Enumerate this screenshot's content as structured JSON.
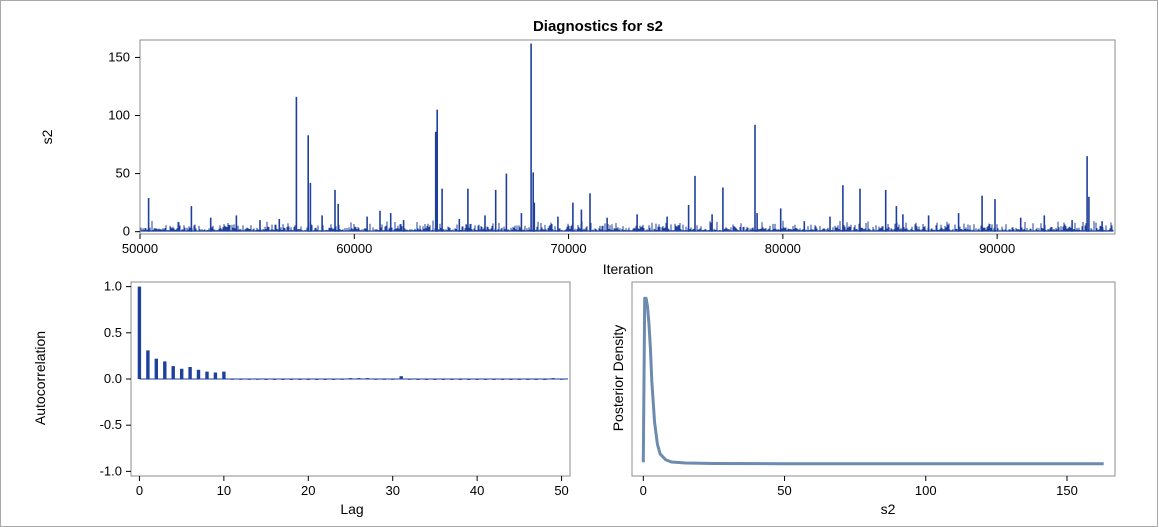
{
  "title": "Diagnostics for s2",
  "colors": {
    "series": "#1f3f9c",
    "density": "#6d8ab1",
    "axis": "#000000",
    "border": "#8c8c8c"
  },
  "chart_data": [
    {
      "type": "line",
      "name": "trace",
      "xlabel": "Iteration",
      "ylabel": "s2",
      "xlim": [
        50000,
        95500
      ],
      "ylim": [
        -2,
        165
      ],
      "xticks": [
        "50000",
        "60000",
        "70000",
        "80000",
        "90000"
      ],
      "yticks": [
        "0",
        "50",
        "100",
        "150"
      ],
      "spikes": [
        {
          "x": 50400,
          "y": 29
        },
        {
          "x": 52400,
          "y": 22
        },
        {
          "x": 53300,
          "y": 12
        },
        {
          "x": 54500,
          "y": 14
        },
        {
          "x": 55600,
          "y": 10
        },
        {
          "x": 56500,
          "y": 11
        },
        {
          "x": 57300,
          "y": 116
        },
        {
          "x": 57850,
          "y": 83
        },
        {
          "x": 57950,
          "y": 42
        },
        {
          "x": 58500,
          "y": 14
        },
        {
          "x": 59100,
          "y": 36
        },
        {
          "x": 59250,
          "y": 24
        },
        {
          "x": 60600,
          "y": 13
        },
        {
          "x": 61200,
          "y": 18
        },
        {
          "x": 61700,
          "y": 16
        },
        {
          "x": 62300,
          "y": 10
        },
        {
          "x": 63800,
          "y": 86
        },
        {
          "x": 63870,
          "y": 105
        },
        {
          "x": 64100,
          "y": 37
        },
        {
          "x": 64900,
          "y": 11
        },
        {
          "x": 65300,
          "y": 37
        },
        {
          "x": 66100,
          "y": 14
        },
        {
          "x": 66600,
          "y": 36
        },
        {
          "x": 67100,
          "y": 50
        },
        {
          "x": 67800,
          "y": 16
        },
        {
          "x": 68250,
          "y": 162
        },
        {
          "x": 68350,
          "y": 51
        },
        {
          "x": 68400,
          "y": 25
        },
        {
          "x": 69500,
          "y": 13
        },
        {
          "x": 70200,
          "y": 25
        },
        {
          "x": 70600,
          "y": 19
        },
        {
          "x": 71000,
          "y": 33
        },
        {
          "x": 71800,
          "y": 12
        },
        {
          "x": 73200,
          "y": 15
        },
        {
          "x": 74600,
          "y": 13
        },
        {
          "x": 75600,
          "y": 23
        },
        {
          "x": 75900,
          "y": 48
        },
        {
          "x": 76700,
          "y": 15
        },
        {
          "x": 77200,
          "y": 38
        },
        {
          "x": 78700,
          "y": 92
        },
        {
          "x": 78800,
          "y": 16
        },
        {
          "x": 79900,
          "y": 20
        },
        {
          "x": 81000,
          "y": 9
        },
        {
          "x": 82200,
          "y": 13
        },
        {
          "x": 82800,
          "y": 40
        },
        {
          "x": 83600,
          "y": 37
        },
        {
          "x": 84800,
          "y": 36
        },
        {
          "x": 85300,
          "y": 22
        },
        {
          "x": 85600,
          "y": 15
        },
        {
          "x": 86800,
          "y": 14
        },
        {
          "x": 88200,
          "y": 16
        },
        {
          "x": 89300,
          "y": 31
        },
        {
          "x": 89900,
          "y": 28
        },
        {
          "x": 91100,
          "y": 12
        },
        {
          "x": 92200,
          "y": 14
        },
        {
          "x": 93500,
          "y": 10
        },
        {
          "x": 94200,
          "y": 65
        },
        {
          "x": 94280,
          "y": 30
        },
        {
          "x": 94900,
          "y": 9
        }
      ]
    },
    {
      "type": "bar",
      "name": "autocorrelation",
      "xlabel": "Lag",
      "ylabel": "Autocorrelation",
      "xlim": [
        -1,
        51
      ],
      "ylim": [
        -1.05,
        1.05
      ],
      "xticks": [
        "0",
        "10",
        "20",
        "30",
        "40",
        "50"
      ],
      "yticks": [
        "1.0",
        "0.5",
        "0.0",
        "-0.5",
        "-1.0"
      ],
      "lags": [
        0,
        1,
        2,
        3,
        4,
        5,
        6,
        7,
        8,
        9,
        10,
        11,
        12,
        13,
        14,
        15,
        16,
        17,
        18,
        19,
        20,
        21,
        22,
        23,
        24,
        25,
        26,
        27,
        28,
        29,
        30,
        31,
        32,
        33,
        34,
        35,
        36,
        37,
        38,
        39,
        40,
        41,
        42,
        43,
        44,
        45,
        46,
        47,
        48,
        49,
        50
      ],
      "values": [
        1.0,
        0.31,
        0.22,
        0.19,
        0.14,
        0.11,
        0.13,
        0.1,
        0.08,
        0.07,
        0.08,
        0.0,
        0.0,
        0.0,
        0.0,
        -0.01,
        -0.01,
        -0.01,
        -0.01,
        -0.01,
        -0.01,
        -0.01,
        -0.01,
        -0.01,
        0.0,
        0.01,
        0.01,
        0.01,
        0.0,
        0.0,
        0.0,
        0.03,
        0.0,
        -0.01,
        -0.01,
        -0.01,
        -0.01,
        -0.01,
        -0.01,
        -0.01,
        -0.01,
        -0.01,
        -0.01,
        -0.01,
        -0.01,
        -0.01,
        -0.01,
        -0.01,
        -0.01,
        0.01,
        0.0
      ]
    },
    {
      "type": "line",
      "name": "density",
      "xlabel": "s2",
      "ylabel": "Posterior Density",
      "xlim": [
        -4,
        167
      ],
      "ylim": [
        0,
        1.05
      ],
      "xticks": [
        "0",
        "50",
        "100",
        "150"
      ],
      "x": [
        0,
        0.5,
        1,
        1.5,
        2,
        2.5,
        3,
        4,
        5,
        6,
        8,
        10,
        15,
        25,
        50,
        100,
        163
      ],
      "y": [
        0.01,
        1.0,
        1.0,
        0.95,
        0.85,
        0.7,
        0.5,
        0.25,
        0.12,
        0.06,
        0.025,
        0.012,
        0.006,
        0.003,
        0.002,
        0.002,
        0.002
      ]
    }
  ]
}
